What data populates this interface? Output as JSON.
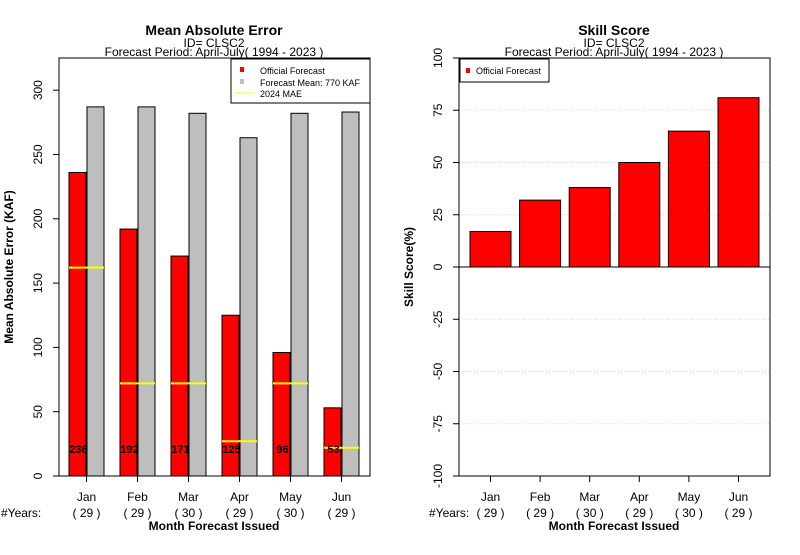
{
  "chart_data": [
    {
      "type": "bar",
      "title": "Mean Absolute Error",
      "subtitle_id": "ID= CLSC2",
      "subtitle_period": "Forecast Period: April-July( 1994 - 2023 )",
      "ylabel": "Mean Absolute Error (KAF)",
      "xlabel": "Month Forecast Issued",
      "years_label": "#Years:",
      "ylim": [
        0,
        325
      ],
      "yticks": [
        0,
        50,
        100,
        150,
        200,
        250,
        300
      ],
      "categories": [
        "Jan",
        "Feb",
        "Mar",
        "Apr",
        "May",
        "Jun"
      ],
      "years": [
        "( 29 )",
        "( 29 )",
        "( 30 )",
        "( 29 )",
        "( 30 )",
        "( 29 )"
      ],
      "series": [
        {
          "name": "Official Forecast",
          "color": "#ff0000",
          "values": [
            236,
            192,
            171,
            125,
            96,
            53
          ]
        },
        {
          "name": "Forecast Mean: 770 KAF",
          "color": "#bebebe",
          "values": [
            287,
            287,
            282,
            263,
            282,
            283
          ]
        }
      ],
      "mae_2024": {
        "name": "2024  MAE",
        "color": "#ffff00",
        "values": [
          162,
          72,
          72,
          27,
          72,
          22
        ]
      },
      "bar_labels": [
        "236",
        "192",
        "171",
        "125",
        "96",
        "53"
      ],
      "legend_position": "top-right",
      "grid": false
    },
    {
      "type": "bar",
      "title": "Skill Score",
      "subtitle_id": "ID= CLSC2",
      "subtitle_period": "Forecast Period: April-July( 1994 - 2023 )",
      "ylabel": "Skill Score(%)",
      "xlabel": "Month Forecast Issued",
      "years_label": "#Years:",
      "ylim": [
        -100,
        100
      ],
      "yticks": [
        -100,
        -75,
        -50,
        -25,
        0,
        25,
        50,
        75,
        100
      ],
      "ytick_labels": [
        "-100",
        "-75",
        "-50",
        "-25",
        "0",
        "25",
        "50",
        "75",
        "100"
      ],
      "categories": [
        "Jan",
        "Feb",
        "Mar",
        "Apr",
        "May",
        "Jun"
      ],
      "years": [
        "( 29 )",
        "( 29 )",
        "( 30 )",
        "( 29 )",
        "( 30 )",
        "( 29 )"
      ],
      "series": [
        {
          "name": "Official Forecast",
          "color": "#ff0000",
          "values": [
            17,
            32,
            38,
            50,
            65,
            81
          ]
        }
      ],
      "legend_position": "top-left",
      "grid": true
    }
  ]
}
